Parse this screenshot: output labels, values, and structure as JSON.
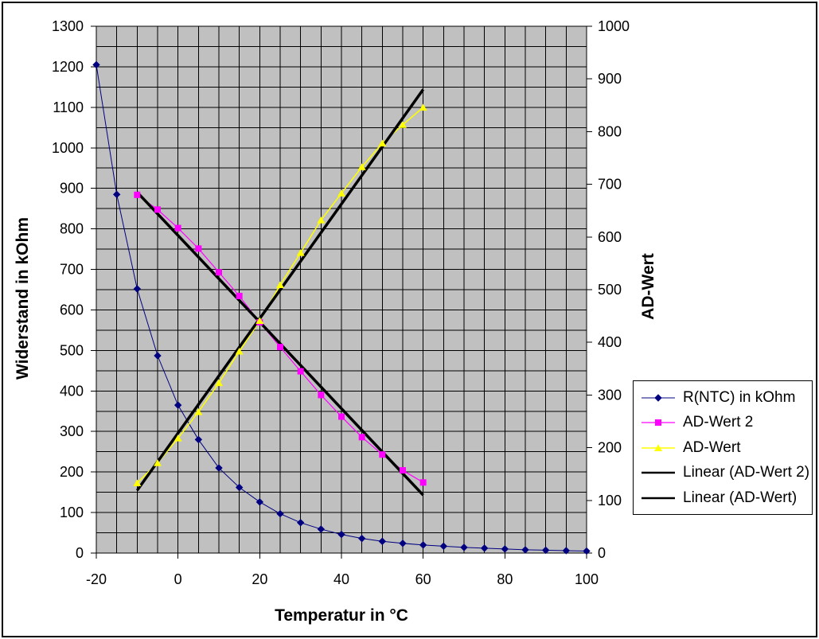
{
  "frame": {
    "background": "#ffffff",
    "border_color": "#000000"
  },
  "chart_data": {
    "type": "line",
    "title": "",
    "plot_bg": "#c0c0c0",
    "grid_color": "#000000",
    "x_axis": {
      "label": "Temperatur in °C",
      "min": -20,
      "max": 100,
      "ticks": [
        -20,
        0,
        20,
        40,
        60,
        80,
        100
      ],
      "minor_grid_step": 5
    },
    "y_left": {
      "label": "Widerstand in kOhm",
      "min": 0,
      "max": 1300,
      "ticks": [
        0,
        100,
        200,
        300,
        400,
        500,
        600,
        700,
        800,
        900,
        1000,
        1100,
        1200,
        1300
      ],
      "minor_grid_step": 50
    },
    "y_right": {
      "label": "AD-Wert",
      "min": 0,
      "max": 1000,
      "ticks": [
        0,
        100,
        200,
        300,
        400,
        500,
        600,
        700,
        800,
        900,
        1000
      ]
    },
    "series": [
      {
        "name": "R(NTC) in kOhm",
        "axis": "left",
        "color": "#000080",
        "marker": "diamond",
        "line_width": 1,
        "x": [
          -20,
          -15,
          -10,
          -5,
          0,
          5,
          10,
          15,
          20,
          25,
          30,
          35,
          40,
          45,
          50,
          55,
          60,
          65,
          70,
          75,
          80,
          85,
          90,
          95,
          100
        ],
        "values": [
          1205,
          885,
          652,
          487,
          365,
          280,
          210,
          162,
          126,
          97,
          75,
          59,
          46,
          36,
          29,
          24,
          20,
          17,
          14,
          12,
          10,
          8,
          7,
          6,
          5
        ]
      },
      {
        "name": "AD-Wert 2",
        "axis": "right",
        "color": "#ff00ff",
        "marker": "square",
        "line_width": 1.2,
        "x": [
          -10,
          -5,
          0,
          5,
          10,
          15,
          20,
          25,
          30,
          35,
          40,
          45,
          50,
          55,
          60
        ],
        "values": [
          680,
          652,
          617,
          578,
          533,
          488,
          438,
          391,
          345,
          300,
          259,
          220,
          187,
          157,
          134
        ]
      },
      {
        "name": "AD-Wert",
        "axis": "right",
        "color": "#ffff00",
        "marker": "triangle",
        "line_width": 1.5,
        "x": [
          -10,
          -5,
          0,
          5,
          10,
          15,
          20,
          25,
          30,
          35,
          40,
          45,
          50,
          55,
          60
        ],
        "values": [
          133,
          171,
          218,
          268,
          323,
          383,
          441,
          509,
          570,
          632,
          683,
          733,
          778,
          813,
          846
        ]
      },
      {
        "name": "Linear (AD-Wert 2)",
        "axis": "right",
        "color": "#000000",
        "marker": "none",
        "line_width": 3.5,
        "x": [
          -10,
          60
        ],
        "values": [
          685,
          110
        ]
      },
      {
        "name": "Linear (AD-Wert)",
        "axis": "right",
        "color": "#000000",
        "marker": "none",
        "line_width": 3.5,
        "x": [
          -10,
          60
        ],
        "values": [
          119,
          880
        ]
      }
    ],
    "legend": {
      "position": "right"
    }
  }
}
